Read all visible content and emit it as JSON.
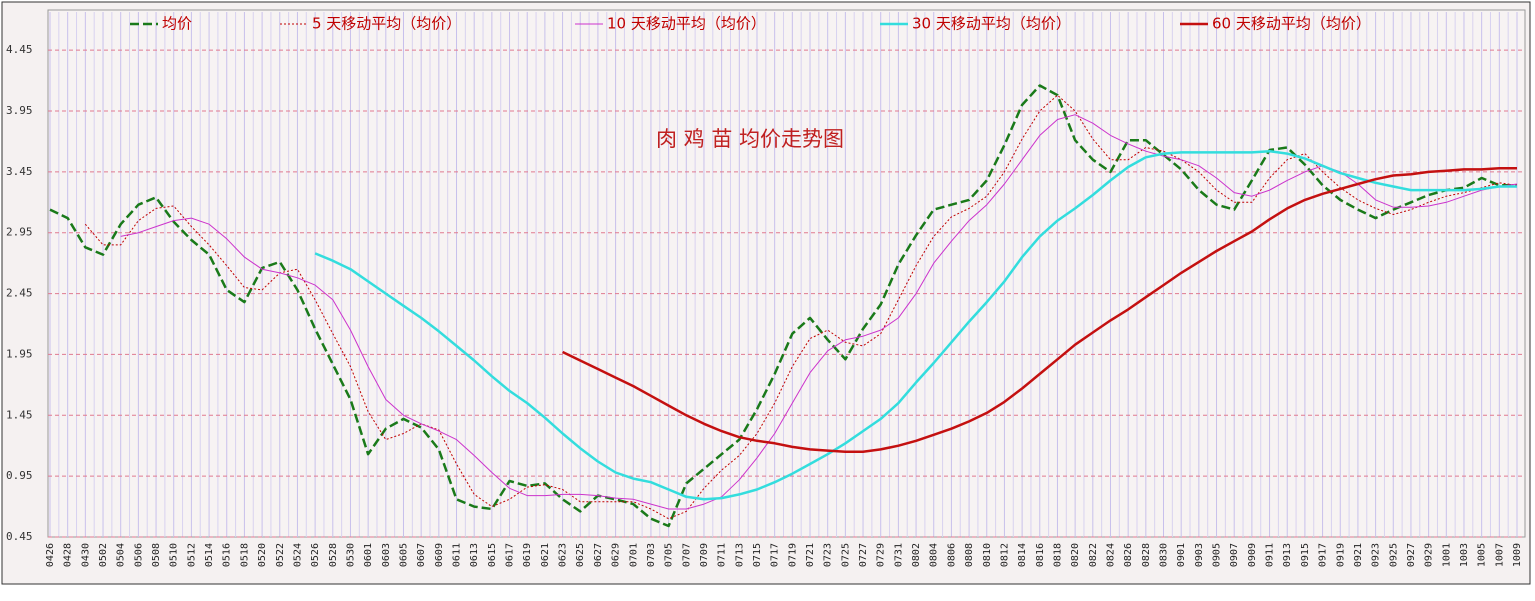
{
  "chart_data": {
    "type": "line",
    "title": "肉 鸡 苗 均价走势图",
    "categories": [
      "0426",
      "0428",
      "0430",
      "0502",
      "0504",
      "0506",
      "0508",
      "0510",
      "0512",
      "0514",
      "0516",
      "0518",
      "0520",
      "0522",
      "0524",
      "0526",
      "0528",
      "0530",
      "0601",
      "0603",
      "0605",
      "0607",
      "0609",
      "0611",
      "0613",
      "0615",
      "0617",
      "0619",
      "0621",
      "0623",
      "0625",
      "0627",
      "0629",
      "0701",
      "0703",
      "0705",
      "0707",
      "0709",
      "0711",
      "0713",
      "0715",
      "0717",
      "0719",
      "0721",
      "0723",
      "0725",
      "0727",
      "0729",
      "0731",
      "0802",
      "0804",
      "0806",
      "0808",
      "0810",
      "0812",
      "0814",
      "0816",
      "0818",
      "0820",
      "0822",
      "0824",
      "0826",
      "0828",
      "0830",
      "0901",
      "0903",
      "0905",
      "0907",
      "0909",
      "0911",
      "0913",
      "0915",
      "0917",
      "0919",
      "0921",
      "0923",
      "0925",
      "0927",
      "0929",
      "1001",
      "1003",
      "1005",
      "1007",
      "1009"
    ],
    "series": [
      {
        "name": "均价",
        "color": "#1a7a1a",
        "values": [
          3.14,
          3.07,
          2.83,
          2.77,
          3.02,
          3.18,
          3.24,
          3.04,
          2.89,
          2.77,
          2.48,
          2.38,
          2.66,
          2.71,
          2.48,
          2.16,
          1.87,
          1.58,
          1.13,
          1.34,
          1.42,
          1.35,
          1.17,
          0.76,
          0.7,
          0.68,
          0.91,
          0.87,
          0.89,
          0.76,
          0.66,
          0.79,
          0.76,
          0.72,
          0.6,
          0.54,
          0.89,
          1.01,
          1.13,
          1.25,
          1.5,
          1.79,
          2.12,
          2.25,
          2.07,
          1.91,
          2.16,
          2.36,
          2.69,
          2.93,
          3.14,
          3.18,
          3.22,
          3.38,
          3.67,
          4.0,
          4.16,
          4.08,
          3.71,
          3.55,
          3.45,
          3.71,
          3.71,
          3.59,
          3.47,
          3.3,
          3.18,
          3.14,
          3.38,
          3.63,
          3.65,
          3.51,
          3.34,
          3.22,
          3.14,
          3.07,
          3.14,
          3.2,
          3.26,
          3.3,
          3.32,
          3.4,
          3.34,
          3.34
        ]
      },
      {
        "name": "5 天移动平均（均价）",
        "color": "#c00000",
        "values": [
          null,
          null,
          3.02,
          2.85,
          2.85,
          3.05,
          3.15,
          3.17,
          3.0,
          2.85,
          2.68,
          2.5,
          2.48,
          2.62,
          2.65,
          2.4,
          2.12,
          1.85,
          1.48,
          1.25,
          1.3,
          1.38,
          1.33,
          1.05,
          0.8,
          0.7,
          0.76,
          0.86,
          0.88,
          0.84,
          0.74,
          0.74,
          0.74,
          0.74,
          0.68,
          0.6,
          0.66,
          0.85,
          1.0,
          1.12,
          1.3,
          1.55,
          1.85,
          2.08,
          2.15,
          2.05,
          2.02,
          2.12,
          2.4,
          2.68,
          2.92,
          3.08,
          3.15,
          3.25,
          3.45,
          3.72,
          3.95,
          4.08,
          3.95,
          3.72,
          3.55,
          3.55,
          3.65,
          3.62,
          3.55,
          3.45,
          3.3,
          3.2,
          3.2,
          3.4,
          3.55,
          3.6,
          3.45,
          3.32,
          3.22,
          3.15,
          3.1,
          3.14,
          3.2,
          3.25,
          3.28,
          3.32,
          3.36,
          3.34
        ]
      },
      {
        "name": "10 天移动平均（均价）",
        "color": "#cc33cc",
        "values": [
          null,
          null,
          null,
          null,
          2.92,
          2.95,
          3.0,
          3.05,
          3.07,
          3.02,
          2.9,
          2.75,
          2.65,
          2.62,
          2.58,
          2.52,
          2.4,
          2.15,
          1.85,
          1.58,
          1.45,
          1.38,
          1.32,
          1.25,
          1.12,
          0.98,
          0.85,
          0.79,
          0.79,
          0.8,
          0.8,
          0.79,
          0.77,
          0.76,
          0.72,
          0.68,
          0.68,
          0.72,
          0.78,
          0.92,
          1.1,
          1.3,
          1.55,
          1.8,
          1.98,
          2.07,
          2.1,
          2.15,
          2.25,
          2.45,
          2.7,
          2.88,
          3.05,
          3.18,
          3.35,
          3.55,
          3.75,
          3.88,
          3.92,
          3.85,
          3.75,
          3.68,
          3.62,
          3.58,
          3.55,
          3.5,
          3.4,
          3.28,
          3.25,
          3.3,
          3.38,
          3.45,
          3.5,
          3.45,
          3.35,
          3.22,
          3.16,
          3.16,
          3.17,
          3.2,
          3.25,
          3.3,
          3.33,
          3.35
        ]
      },
      {
        "name": "30 天移动平均（均价）",
        "color": "#33dddd",
        "values": [
          null,
          null,
          null,
          null,
          null,
          null,
          null,
          null,
          null,
          null,
          null,
          null,
          null,
          null,
          null,
          2.78,
          2.72,
          2.65,
          2.55,
          2.45,
          2.35,
          2.25,
          2.14,
          2.02,
          1.9,
          1.77,
          1.65,
          1.55,
          1.43,
          1.3,
          1.18,
          1.07,
          0.98,
          0.93,
          0.9,
          0.84,
          0.78,
          0.76,
          0.77,
          0.8,
          0.84,
          0.9,
          0.97,
          1.05,
          1.13,
          1.22,
          1.32,
          1.42,
          1.55,
          1.72,
          1.88,
          2.05,
          2.22,
          2.38,
          2.55,
          2.75,
          2.92,
          3.05,
          3.15,
          3.26,
          3.38,
          3.49,
          3.57,
          3.6,
          3.61,
          3.61,
          3.61,
          3.61,
          3.61,
          3.62,
          3.6,
          3.56,
          3.5,
          3.44,
          3.4,
          3.36,
          3.33,
          3.3,
          3.3,
          3.3,
          3.3,
          3.31,
          3.33,
          3.33
        ]
      },
      {
        "name": "60 天移动平均（均价）",
        "color": "#c41010",
        "values": [
          null,
          null,
          null,
          null,
          null,
          null,
          null,
          null,
          null,
          null,
          null,
          null,
          null,
          null,
          null,
          null,
          null,
          null,
          null,
          null,
          null,
          null,
          null,
          null,
          null,
          null,
          null,
          null,
          null,
          1.97,
          1.9,
          1.83,
          1.76,
          1.69,
          1.61,
          1.53,
          1.45,
          1.38,
          1.32,
          1.27,
          1.24,
          1.22,
          1.19,
          1.17,
          1.16,
          1.15,
          1.15,
          1.17,
          1.2,
          1.24,
          1.29,
          1.34,
          1.4,
          1.47,
          1.56,
          1.67,
          1.79,
          1.91,
          2.03,
          2.13,
          2.23,
          2.32,
          2.42,
          2.52,
          2.62,
          2.71,
          2.8,
          2.88,
          2.96,
          3.06,
          3.15,
          3.22,
          3.27,
          3.31,
          3.35,
          3.39,
          3.42,
          3.43,
          3.45,
          3.46,
          3.47,
          3.47,
          3.48,
          3.48
        ]
      }
    ],
    "ylim": [
      0.45,
      4.78
    ],
    "yticks": [
      0.45,
      0.95,
      1.45,
      1.95,
      2.45,
      2.95,
      3.45,
      3.95,
      4.45
    ],
    "grid": true,
    "legend": "top"
  }
}
